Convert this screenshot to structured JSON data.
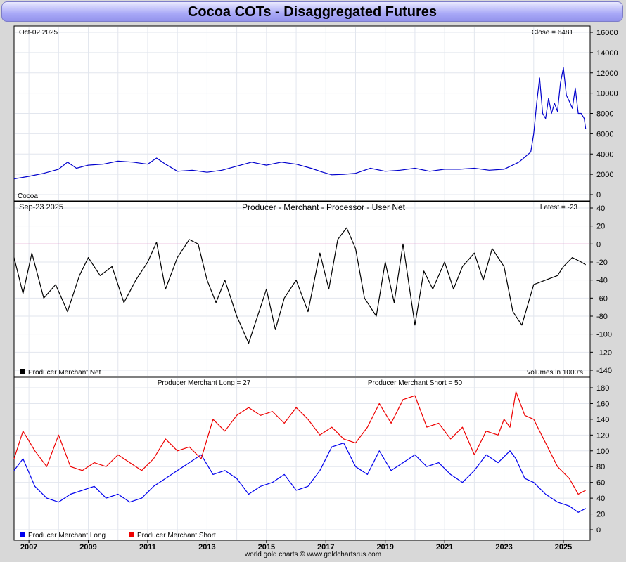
{
  "title": "Cocoa COTs - Disaggregated Futures",
  "footer": "world gold charts © www.goldchartsrus.com",
  "colors": {
    "price": "#0000cc",
    "net": "#000000",
    "long": "#0000ee",
    "short": "#ee0000",
    "zero": "#cc3399",
    "grid": "#e2e6ee"
  },
  "chart_data": [
    {
      "type": "line",
      "panel": "price",
      "date_label": "Oct-02  2025",
      "latest_label": "Close = 6481",
      "instrument_label": "Cocoa",
      "x_range": [
        2006.5,
        2025.9
      ],
      "ylim": [
        0,
        16000
      ],
      "yticks": [
        0,
        2000,
        4000,
        6000,
        8000,
        10000,
        12000,
        14000,
        16000
      ],
      "series": [
        {
          "name": "Cocoa",
          "color": "#0000cc",
          "x": [
            2006.5,
            2007.0,
            2007.5,
            2008.0,
            2008.3,
            2008.6,
            2009.0,
            2009.5,
            2010.0,
            2010.5,
            2011.0,
            2011.3,
            2011.6,
            2012.0,
            2012.5,
            2013.0,
            2013.5,
            2014.0,
            2014.5,
            2015.0,
            2015.5,
            2016.0,
            2016.5,
            2016.9,
            2017.2,
            2017.6,
            2018.0,
            2018.5,
            2019.0,
            2019.5,
            2020.0,
            2020.5,
            2021.0,
            2021.5,
            2022.0,
            2022.5,
            2023.0,
            2023.5,
            2023.9,
            2024.0,
            2024.1,
            2024.2,
            2024.3,
            2024.4,
            2024.5,
            2024.6,
            2024.7,
            2024.8,
            2024.9,
            2025.0,
            2025.1,
            2025.2,
            2025.3,
            2025.4,
            2025.5,
            2025.6,
            2025.7,
            2025.75
          ],
          "y": [
            1550,
            1800,
            2100,
            2500,
            3200,
            2600,
            2900,
            3000,
            3300,
            3200,
            3000,
            3600,
            3000,
            2300,
            2400,
            2200,
            2400,
            2800,
            3200,
            2900,
            3200,
            3000,
            2600,
            2200,
            1950,
            2000,
            2100,
            2600,
            2300,
            2400,
            2600,
            2300,
            2500,
            2500,
            2600,
            2400,
            2500,
            3200,
            4200,
            6000,
            9000,
            11500,
            8000,
            7500,
            9500,
            8000,
            9000,
            8200,
            11000,
            12500,
            9800,
            9200,
            8500,
            10500,
            8000,
            8000,
            7500,
            6481
          ]
        }
      ]
    },
    {
      "type": "line",
      "panel": "net",
      "date_label": "Sep-23  2025",
      "title": "Producer - Merchant - Processor - User Net",
      "latest_label": "Latest = -23",
      "unit_label": "volumes in 1000's",
      "x_range": [
        2006.5,
        2025.9
      ],
      "ylim": [
        -140,
        40
      ],
      "yticks": [
        -140,
        -120,
        -100,
        -80,
        -60,
        -40,
        -20,
        0,
        20,
        40
      ],
      "series": [
        {
          "name": "Producer Merchant Net",
          "color": "#000000",
          "x": [
            2006.5,
            2006.8,
            2007.1,
            2007.5,
            2007.9,
            2008.3,
            2008.7,
            2009.0,
            2009.4,
            2009.8,
            2010.2,
            2010.6,
            2011.0,
            2011.3,
            2011.6,
            2012.0,
            2012.4,
            2012.7,
            2013.0,
            2013.3,
            2013.6,
            2014.0,
            2014.4,
            2014.8,
            2015.0,
            2015.3,
            2015.6,
            2016.0,
            2016.4,
            2016.8,
            2017.1,
            2017.4,
            2017.7,
            2018.0,
            2018.3,
            2018.7,
            2019.0,
            2019.3,
            2019.6,
            2020.0,
            2020.3,
            2020.6,
            2021.0,
            2021.3,
            2021.6,
            2022.0,
            2022.3,
            2022.6,
            2023.0,
            2023.3,
            2023.6,
            2024.0,
            2024.4,
            2024.8,
            2025.0,
            2025.3,
            2025.6,
            2025.75
          ],
          "y": [
            -15,
            -55,
            -10,
            -60,
            -45,
            -75,
            -35,
            -15,
            -35,
            -25,
            -65,
            -40,
            -20,
            2,
            -50,
            -15,
            5,
            0,
            -40,
            -65,
            -40,
            -80,
            -110,
            -70,
            -50,
            -95,
            -60,
            -40,
            -75,
            -10,
            -50,
            5,
            18,
            -5,
            -60,
            -80,
            -20,
            -65,
            0,
            -90,
            -30,
            -50,
            -20,
            -50,
            -25,
            -10,
            -40,
            -5,
            -25,
            -75,
            -90,
            -45,
            -40,
            -35,
            -25,
            -15,
            -20,
            -23
          ]
        }
      ]
    },
    {
      "type": "line",
      "panel": "long_short",
      "long_label": "Producer Merchant Long = 27",
      "short_label": "Producer Merchant Short = 50",
      "x_range": [
        2006.5,
        2025.9
      ],
      "ylim": [
        0,
        180
      ],
      "yticks": [
        0,
        20,
        40,
        60,
        80,
        100,
        120,
        140,
        160,
        180
      ],
      "xticks": [
        "2007",
        "2009",
        "2011",
        "2013",
        "2015",
        "2017",
        "2019",
        "2021",
        "2023",
        "2025"
      ],
      "series": [
        {
          "name": "Producer Merchant Long",
          "color": "#0000ee",
          "x": [
            2006.5,
            2006.8,
            2007.2,
            2007.6,
            2008.0,
            2008.4,
            2008.8,
            2009.2,
            2009.6,
            2010.0,
            2010.4,
            2010.8,
            2011.2,
            2011.6,
            2012.0,
            2012.4,
            2012.8,
            2013.2,
            2013.6,
            2014.0,
            2014.4,
            2014.8,
            2015.2,
            2015.6,
            2016.0,
            2016.4,
            2016.8,
            2017.2,
            2017.6,
            2018.0,
            2018.4,
            2018.8,
            2019.2,
            2019.6,
            2020.0,
            2020.4,
            2020.8,
            2021.2,
            2021.6,
            2022.0,
            2022.4,
            2022.8,
            2023.2,
            2023.4,
            2023.7,
            2024.0,
            2024.4,
            2024.8,
            2025.2,
            2025.5,
            2025.75
          ],
          "y": [
            75,
            90,
            55,
            40,
            35,
            45,
            50,
            55,
            40,
            45,
            35,
            40,
            55,
            65,
            75,
            85,
            95,
            70,
            75,
            65,
            45,
            55,
            60,
            70,
            50,
            55,
            75,
            105,
            110,
            80,
            70,
            100,
            75,
            85,
            95,
            80,
            85,
            70,
            60,
            75,
            95,
            85,
            100,
            90,
            65,
            60,
            45,
            35,
            30,
            22,
            27
          ]
        },
        {
          "name": "Producer Merchant Short",
          "color": "#ee0000",
          "x": [
            2006.5,
            2006.8,
            2007.2,
            2007.6,
            2008.0,
            2008.4,
            2008.8,
            2009.2,
            2009.6,
            2010.0,
            2010.4,
            2010.8,
            2011.2,
            2011.6,
            2012.0,
            2012.4,
            2012.8,
            2013.2,
            2013.6,
            2014.0,
            2014.4,
            2014.8,
            2015.2,
            2015.6,
            2016.0,
            2016.4,
            2016.8,
            2017.2,
            2017.6,
            2018.0,
            2018.4,
            2018.8,
            2019.2,
            2019.6,
            2020.0,
            2020.4,
            2020.8,
            2021.2,
            2021.6,
            2022.0,
            2022.4,
            2022.8,
            2023.0,
            2023.2,
            2023.4,
            2023.7,
            2024.0,
            2024.4,
            2024.8,
            2025.2,
            2025.5,
            2025.75
          ],
          "y": [
            90,
            125,
            100,
            80,
            120,
            80,
            75,
            85,
            80,
            95,
            85,
            75,
            90,
            115,
            100,
            105,
            90,
            140,
            125,
            145,
            155,
            145,
            150,
            135,
            155,
            140,
            120,
            130,
            115,
            110,
            130,
            160,
            135,
            165,
            170,
            130,
            135,
            115,
            130,
            95,
            125,
            120,
            140,
            130,
            175,
            145,
            140,
            110,
            80,
            65,
            45,
            50
          ]
        }
      ]
    }
  ]
}
